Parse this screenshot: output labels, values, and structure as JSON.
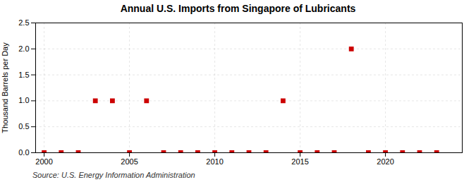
{
  "chart_data": {
    "type": "scatter",
    "title": "Annual U.S. Imports from Singapore of Lubricants",
    "ylabel": "Thousand Barrels per Day",
    "caption": "Source: U.S. Energy Information Administration",
    "x": [
      2000,
      2001,
      2002,
      2003,
      2004,
      2005,
      2006,
      2007,
      2008,
      2009,
      2010,
      2011,
      2012,
      2013,
      2014,
      2015,
      2016,
      2017,
      2018,
      2019,
      2020,
      2021,
      2022,
      2023
    ],
    "values": [
      0.0,
      0.0,
      0.0,
      1.0,
      1.0,
      0.0,
      1.0,
      0.0,
      0.0,
      0.0,
      0.0,
      0.0,
      0.0,
      0.0,
      1.0,
      0.0,
      0.0,
      0.0,
      2.0,
      0.0,
      0.0,
      0.0,
      0.0,
      0.0
    ],
    "color": "#cc0000",
    "marker": "square",
    "xlim": [
      1999.5,
      2024.5
    ],
    "xticks": [
      2000,
      2005,
      2010,
      2015,
      2020
    ],
    "ylim": [
      0,
      2.5
    ],
    "yticks": [
      {
        "value": 0,
        "label": "0.0"
      },
      0.5,
      {
        "value": 1,
        "label": "1.0"
      },
      1.5,
      {
        "value": 2,
        "label": "2.0"
      },
      2.5
    ],
    "grid": true
  }
}
